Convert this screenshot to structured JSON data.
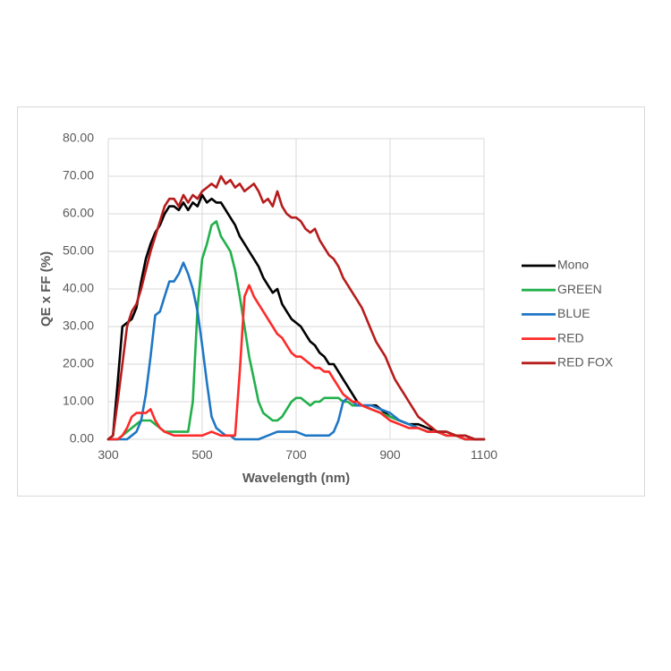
{
  "chart_data": {
    "type": "line",
    "title": "",
    "xlabel": "Wavelength (nm)",
    "ylabel": "QE x FF (%)",
    "xlim": [
      300,
      1100
    ],
    "ylim": [
      0,
      80
    ],
    "xticks": [
      300,
      500,
      700,
      900,
      1100
    ],
    "yticks": [
      "0.00",
      "10.00",
      "20.00",
      "30.00",
      "40.00",
      "50.00",
      "60.00",
      "70.00",
      "80.00"
    ],
    "grid": "on",
    "legend_position": "right",
    "series": [
      {
        "name": "Mono",
        "color": "#000000",
        "x": [
          300,
          310,
          320,
          330,
          340,
          350,
          360,
          370,
          380,
          390,
          400,
          410,
          420,
          430,
          440,
          450,
          460,
          470,
          480,
          490,
          500,
          510,
          520,
          530,
          540,
          550,
          560,
          570,
          580,
          590,
          600,
          610,
          620,
          630,
          640,
          650,
          660,
          670,
          680,
          690,
          700,
          710,
          720,
          730,
          740,
          750,
          760,
          770,
          780,
          790,
          800,
          810,
          820,
          830,
          840,
          850,
          860,
          870,
          880,
          890,
          900,
          920,
          940,
          960,
          980,
          1000,
          1020,
          1040,
          1060,
          1080,
          1100
        ],
        "y": [
          0,
          1,
          15,
          30,
          31,
          32,
          35,
          42,
          48,
          52,
          55,
          57,
          60,
          62,
          62,
          61,
          63,
          61,
          63,
          62,
          65,
          63,
          64,
          63,
          63,
          61,
          59,
          57,
          54,
          52,
          50,
          48,
          46,
          43,
          41,
          39,
          40,
          36,
          34,
          32,
          31,
          30,
          28,
          26,
          25,
          23,
          22,
          20,
          20,
          18,
          16,
          14,
          12,
          10,
          9,
          9,
          9,
          9,
          8,
          7,
          6,
          5,
          4,
          4,
          3,
          2,
          2,
          1,
          1,
          0,
          0
        ]
      },
      {
        "name": "GREEN",
        "color": "#21b04b",
        "x": [
          300,
          320,
          340,
          360,
          370,
          380,
          390,
          400,
          410,
          420,
          430,
          440,
          450,
          460,
          470,
          480,
          490,
          500,
          510,
          520,
          530,
          540,
          550,
          560,
          570,
          580,
          590,
          600,
          610,
          620,
          630,
          640,
          650,
          660,
          670,
          680,
          690,
          700,
          710,
          720,
          730,
          740,
          750,
          760,
          770,
          780,
          790,
          800,
          810,
          820,
          830,
          840,
          860,
          880,
          900,
          920,
          940,
          960,
          980,
          1000,
          1020,
          1040,
          1060,
          1080,
          1100
        ],
        "y": [
          0,
          0,
          2,
          4,
          5,
          5,
          5,
          4,
          3,
          2,
          2,
          2,
          2,
          2,
          2,
          10,
          35,
          48,
          52,
          57,
          58,
          54,
          52,
          50,
          45,
          38,
          30,
          22,
          16,
          10,
          7,
          6,
          5,
          5,
          6,
          8,
          10,
          11,
          11,
          10,
          9,
          10,
          10,
          11,
          11,
          11,
          11,
          10,
          10,
          9,
          9,
          9,
          8,
          7,
          6,
          5,
          4,
          3,
          2,
          2,
          1,
          1,
          0,
          0,
          0
        ]
      },
      {
        "name": "BLUE",
        "color": "#1f77c4",
        "x": [
          300,
          320,
          340,
          350,
          360,
          370,
          380,
          390,
          400,
          410,
          420,
          430,
          440,
          450,
          460,
          470,
          480,
          490,
          500,
          510,
          520,
          530,
          540,
          550,
          560,
          570,
          580,
          590,
          600,
          620,
          640,
          660,
          680,
          700,
          720,
          740,
          760,
          770,
          780,
          790,
          800,
          810,
          820,
          830,
          840,
          860,
          880,
          900,
          920,
          940,
          960,
          980,
          1000,
          1020,
          1040,
          1060,
          1080,
          1100
        ],
        "y": [
          0,
          0,
          0,
          1,
          2,
          5,
          12,
          22,
          33,
          34,
          38,
          42,
          42,
          44,
          47,
          44,
          40,
          34,
          25,
          15,
          6,
          3,
          2,
          1,
          1,
          0,
          0,
          0,
          0,
          0,
          1,
          2,
          2,
          2,
          1,
          1,
          1,
          1,
          2,
          5,
          10,
          11,
          10,
          9,
          9,
          9,
          8,
          7,
          5,
          4,
          3,
          2,
          2,
          1,
          1,
          0,
          0,
          0
        ]
      },
      {
        "name": "RED",
        "color": "#ff2a2a",
        "x": [
          300,
          320,
          330,
          340,
          350,
          360,
          370,
          380,
          390,
          400,
          410,
          420,
          440,
          460,
          480,
          500,
          520,
          540,
          560,
          570,
          580,
          590,
          600,
          610,
          620,
          630,
          640,
          650,
          660,
          670,
          680,
          690,
          700,
          710,
          720,
          730,
          740,
          750,
          760,
          770,
          780,
          790,
          800,
          810,
          820,
          830,
          840,
          860,
          880,
          900,
          920,
          940,
          960,
          980,
          1000,
          1020,
          1040,
          1060,
          1080,
          1100
        ],
        "y": [
          0,
          0,
          1,
          3,
          6,
          7,
          7,
          7,
          8,
          5,
          3,
          2,
          1,
          1,
          1,
          1,
          2,
          1,
          1,
          1,
          18,
          38,
          41,
          38,
          36,
          34,
          32,
          30,
          28,
          27,
          25,
          23,
          22,
          22,
          21,
          20,
          19,
          19,
          18,
          18,
          16,
          14,
          12,
          11,
          10,
          10,
          9,
          8,
          7,
          5,
          4,
          3,
          3,
          2,
          2,
          1,
          1,
          0,
          0,
          0
        ]
      },
      {
        "name": "RED FOX",
        "color": "#b71c1c",
        "x": [
          300,
          310,
          320,
          330,
          340,
          350,
          360,
          370,
          380,
          390,
          400,
          410,
          420,
          430,
          440,
          450,
          460,
          470,
          480,
          490,
          500,
          510,
          520,
          530,
          540,
          550,
          560,
          570,
          580,
          590,
          600,
          610,
          620,
          630,
          640,
          650,
          660,
          670,
          680,
          690,
          700,
          710,
          720,
          730,
          740,
          750,
          760,
          770,
          780,
          790,
          800,
          810,
          820,
          830,
          840,
          850,
          860,
          870,
          880,
          890,
          900,
          910,
          920,
          930,
          940,
          950,
          960,
          970,
          980,
          990,
          1000,
          1020,
          1040,
          1060,
          1080,
          1100
        ],
        "y": [
          0,
          1,
          10,
          20,
          30,
          34,
          36,
          40,
          45,
          50,
          54,
          58,
          62,
          64,
          64,
          62,
          65,
          63,
          65,
          64,
          66,
          67,
          68,
          67,
          70,
          68,
          69,
          67,
          68,
          66,
          67,
          68,
          66,
          63,
          64,
          62,
          66,
          62,
          60,
          59,
          59,
          58,
          56,
          55,
          56,
          53,
          51,
          49,
          48,
          46,
          43,
          41,
          39,
          37,
          35,
          32,
          29,
          26,
          24,
          22,
          19,
          16,
          14,
          12,
          10,
          8,
          6,
          5,
          4,
          3,
          2,
          2,
          1,
          1,
          0,
          0
        ]
      }
    ]
  }
}
